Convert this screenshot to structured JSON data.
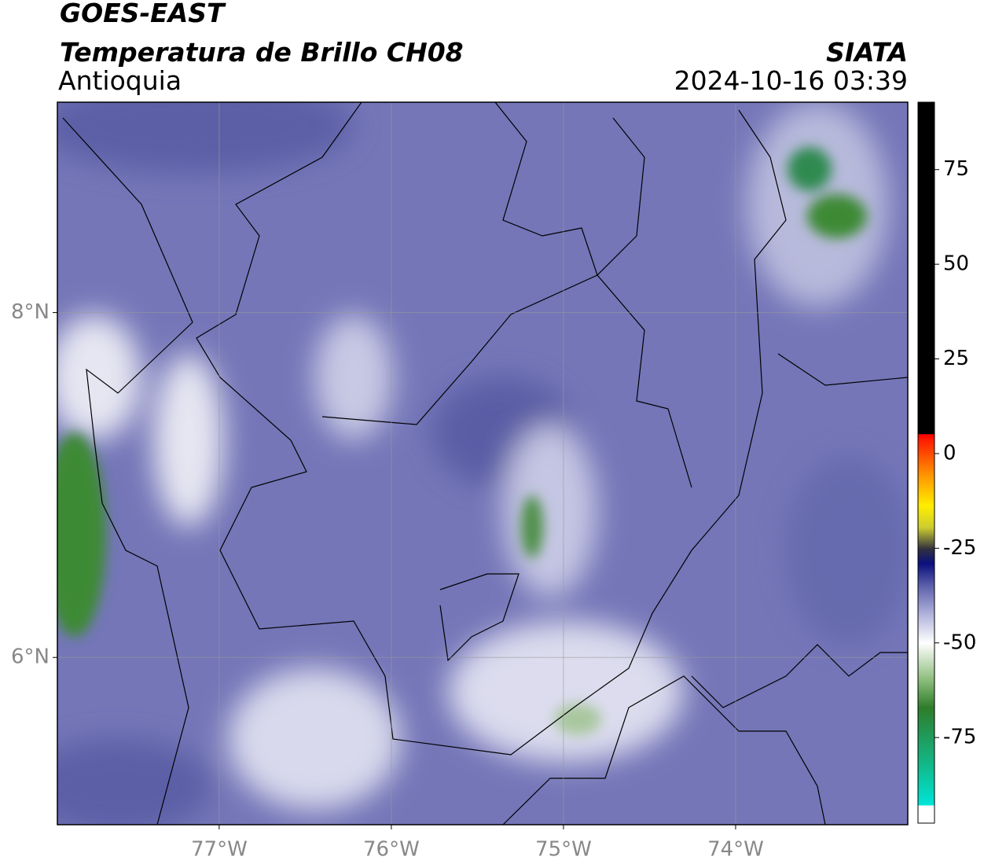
{
  "header": {
    "title": "GOES-EAST",
    "subtitle": "Temperatura de Brillo CH08",
    "region": "Antioquia",
    "source": "SIATA",
    "timestamp": "2024-10-16 03:39"
  },
  "map": {
    "xlim": [
      -77.94,
      -73.0
    ],
    "ylim": [
      5.03,
      9.22
    ],
    "xticks": [
      {
        "value": -77,
        "label": "77°W"
      },
      {
        "value": -76,
        "label": "76°W"
      },
      {
        "value": -75,
        "label": "75°W"
      },
      {
        "value": -74,
        "label": "74°W"
      }
    ],
    "yticks": [
      {
        "value": 8,
        "label": "8°N"
      },
      {
        "value": 6,
        "label": "6°N"
      }
    ],
    "grid": true
  },
  "colorbar": {
    "lim": [
      -97.6,
      92.8
    ],
    "ticks": [
      75,
      50,
      25,
      0,
      -25,
      -50,
      -75
    ]
  }
}
